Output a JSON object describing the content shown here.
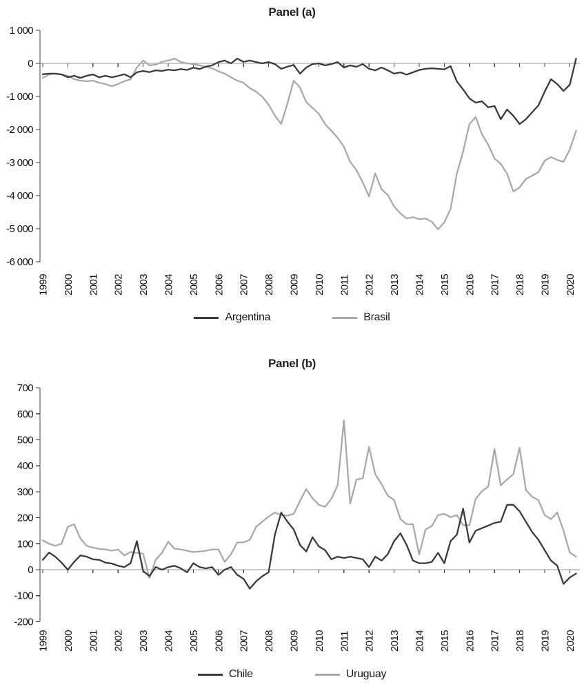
{
  "chart_data": [
    {
      "type": "line",
      "title": "Panel (a)",
      "x_start": 1999,
      "x_step": 0.25,
      "x_tick_labels": [
        "1999",
        "2000",
        "2001",
        "2002",
        "2003",
        "2004",
        "2005",
        "2006",
        "2007",
        "2008",
        "2009",
        "2010",
        "2011",
        "2012",
        "2013",
        "2014",
        "2015",
        "2016",
        "2017",
        "2018",
        "2019",
        "2020"
      ],
      "ylim": [
        -6000,
        1000
      ],
      "y_ticks": [
        1000,
        0,
        -1000,
        -2000,
        -3000,
        -4000,
        -5000,
        -6000
      ],
      "y_tick_labels": [
        "1 000",
        "0",
        "-1 000",
        "-2 000",
        "-3 000",
        "-4 000",
        "-5 000",
        "-6 000"
      ],
      "grid": false,
      "legend_position": "bottom",
      "series": [
        {
          "name": "Argentina",
          "color": "#3a3a3a",
          "values": [
            -330,
            -310,
            -310,
            -335,
            -420,
            -375,
            -440,
            -375,
            -335,
            -420,
            -375,
            -420,
            -380,
            -330,
            -420,
            -270,
            -230,
            -265,
            -210,
            -230,
            -190,
            -210,
            -170,
            -200,
            -130,
            -170,
            -100,
            -60,
            40,
            85,
            0,
            145,
            45,
            85,
            40,
            0,
            40,
            -20,
            -165,
            -100,
            -50,
            -310,
            -125,
            -20,
            0,
            -60,
            -20,
            40,
            -125,
            -60,
            -105,
            -20,
            -165,
            -210,
            -125,
            -210,
            -310,
            -270,
            -340,
            -270,
            -200,
            -165,
            -150,
            -165,
            -180,
            -85,
            -545,
            -790,
            -1060,
            -1190,
            -1145,
            -1330,
            -1290,
            -1690,
            -1395,
            -1585,
            -1835,
            -1690,
            -1480,
            -1270,
            -855,
            -480,
            -625,
            -835,
            -645,
            145
          ]
        },
        {
          "name": "Brasil",
          "color": "#a9a9a9",
          "values": [
            -440,
            -335,
            -310,
            -335,
            -375,
            -480,
            -520,
            -540,
            -520,
            -585,
            -625,
            -690,
            -625,
            -540,
            -480,
            -125,
            85,
            -60,
            -40,
            45,
            85,
            145,
            40,
            0,
            -20,
            -60,
            -105,
            -150,
            -240,
            -310,
            -420,
            -520,
            -585,
            -750,
            -855,
            -1010,
            -1250,
            -1580,
            -1835,
            -1210,
            -520,
            -730,
            -1170,
            -1350,
            -1520,
            -1835,
            -2040,
            -2250,
            -2520,
            -2980,
            -3230,
            -3600,
            -4020,
            -3330,
            -3810,
            -3980,
            -4330,
            -4540,
            -4690,
            -4650,
            -4710,
            -4690,
            -4790,
            -5020,
            -4810,
            -4400,
            -3330,
            -2670,
            -1835,
            -1625,
            -2145,
            -2460,
            -2875,
            -3040,
            -3335,
            -3875,
            -3750,
            -3500,
            -3395,
            -3290,
            -2940,
            -2835,
            -2920,
            -2980,
            -2605,
            -2040
          ]
        }
      ]
    },
    {
      "type": "line",
      "title": "Panel (b)",
      "x_start": 1999,
      "x_step": 0.25,
      "x_tick_labels": [
        "1999",
        "2000",
        "2001",
        "2002",
        "2003",
        "2004",
        "2005",
        "2006",
        "2007",
        "2008",
        "2009",
        "2010",
        "2011",
        "2012",
        "2013",
        "2014",
        "2015",
        "2016",
        "2017",
        "2018",
        "2019",
        "2020"
      ],
      "ylim": [
        -200,
        700
      ],
      "y_ticks": [
        700,
        600,
        500,
        400,
        300,
        200,
        100,
        0,
        -100,
        -200
      ],
      "y_tick_labels": [
        "700",
        "600",
        "500",
        "400",
        "300",
        "200",
        "100",
        "0",
        "-100",
        "-200"
      ],
      "grid": false,
      "legend_position": "bottom",
      "series": [
        {
          "name": "Chile",
          "color": "#3a3a3a",
          "values": [
            38,
            66,
            50,
            27,
            0,
            30,
            55,
            50,
            40,
            38,
            27,
            24,
            15,
            10,
            25,
            110,
            -5,
            -25,
            10,
            0,
            10,
            15,
            5,
            -10,
            25,
            10,
            5,
            10,
            -20,
            0,
            10,
            -20,
            -35,
            -73,
            -45,
            -25,
            -10,
            135,
            220,
            185,
            155,
            95,
            70,
            125,
            90,
            75,
            40,
            50,
            45,
            50,
            45,
            40,
            10,
            50,
            35,
            60,
            110,
            140,
            95,
            35,
            25,
            25,
            30,
            65,
            25,
            110,
            135,
            235,
            105,
            150,
            160,
            170,
            180,
            185,
            250,
            250,
            225,
            185,
            145,
            115,
            75,
            35,
            15,
            -55,
            -30,
            -15
          ]
        },
        {
          "name": "Uruguay",
          "color": "#a9a9a9",
          "values": [
            113,
            100,
            92,
            100,
            165,
            175,
            120,
            92,
            85,
            80,
            78,
            73,
            78,
            55,
            68,
            65,
            62,
            -32,
            38,
            65,
            108,
            81,
            78,
            73,
            68,
            70,
            73,
            78,
            78,
            30,
            60,
            105,
            105,
            115,
            165,
            185,
            205,
            220,
            210,
            208,
            215,
            265,
            310,
            275,
            250,
            242,
            273,
            325,
            575,
            255,
            347,
            352,
            473,
            368,
            329,
            285,
            268,
            195,
            175,
            175,
            58,
            155,
            168,
            210,
            215,
            202,
            210,
            171,
            171,
            273,
            302,
            320,
            465,
            325,
            347,
            368,
            470,
            307,
            281,
            268,
            210,
            195,
            220,
            150,
            66,
            50
          ]
        }
      ]
    }
  ]
}
